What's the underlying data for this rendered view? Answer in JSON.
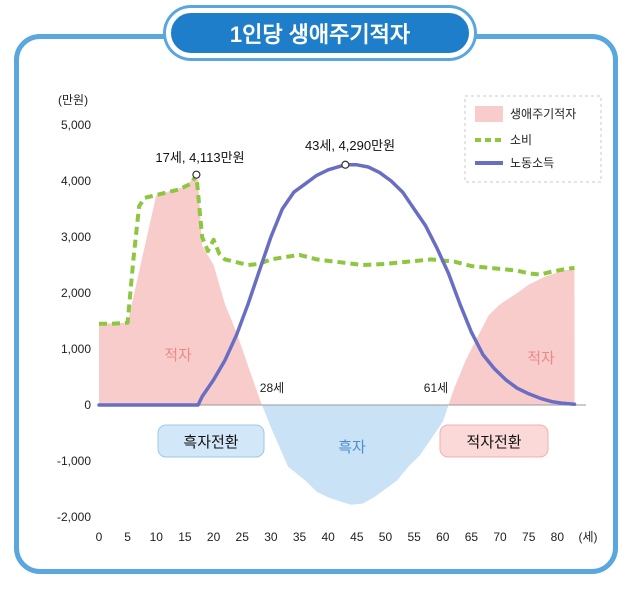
{
  "title": "1인당 생애주기적자",
  "chart_data": {
    "type": "area",
    "ylabel": "(만원)",
    "xlabel": "(세)",
    "ylim": [
      -2000,
      5000
    ],
    "xlim": [
      0,
      85
    ],
    "x_ticks": [
      0,
      5,
      10,
      15,
      20,
      25,
      30,
      35,
      40,
      45,
      50,
      55,
      60,
      65,
      70,
      75,
      80
    ],
    "y_ticks": [
      -2000,
      -1000,
      0,
      1000,
      2000,
      3000,
      4000,
      5000
    ],
    "y_tick_labels": [
      "-2,000",
      "-1,000",
      "0",
      "1,000",
      "2,000",
      "3,000",
      "4,000",
      "5,000"
    ],
    "legend_position": "top-right",
    "series": [
      {
        "name": "소비",
        "style": "dashed-line",
        "color": "#8dc63f",
        "points": [
          [
            0,
            1450
          ],
          [
            2,
            1450
          ],
          [
            4,
            1460
          ],
          [
            5,
            1470
          ],
          [
            6,
            2600
          ],
          [
            7,
            3550
          ],
          [
            8,
            3700
          ],
          [
            10,
            3750
          ],
          [
            12,
            3800
          ],
          [
            14,
            3850
          ],
          [
            15,
            3900
          ],
          [
            16,
            3950
          ],
          [
            17,
            4100
          ],
          [
            18,
            3000
          ],
          [
            19,
            2750
          ],
          [
            20,
            2950
          ],
          [
            21,
            2700
          ],
          [
            22,
            2600
          ],
          [
            24,
            2550
          ],
          [
            26,
            2500
          ],
          [
            28,
            2520
          ],
          [
            30,
            2600
          ],
          [
            33,
            2650
          ],
          [
            35,
            2680
          ],
          [
            38,
            2600
          ],
          [
            42,
            2550
          ],
          [
            46,
            2500
          ],
          [
            50,
            2520
          ],
          [
            54,
            2560
          ],
          [
            58,
            2600
          ],
          [
            62,
            2560
          ],
          [
            65,
            2480
          ],
          [
            70,
            2430
          ],
          [
            73,
            2400
          ],
          [
            75,
            2350
          ],
          [
            77,
            2330
          ],
          [
            79,
            2380
          ],
          [
            81,
            2420
          ],
          [
            83,
            2450
          ]
        ]
      },
      {
        "name": "노동소득",
        "style": "solid-line",
        "color": "#6a6ec2",
        "points": [
          [
            0,
            0
          ],
          [
            16,
            0
          ],
          [
            17.3,
            0
          ],
          [
            18,
            150
          ],
          [
            20,
            450
          ],
          [
            22,
            800
          ],
          [
            24,
            1250
          ],
          [
            26,
            1800
          ],
          [
            28,
            2400
          ],
          [
            30,
            3000
          ],
          [
            32,
            3500
          ],
          [
            34,
            3800
          ],
          [
            36,
            3950
          ],
          [
            38,
            4100
          ],
          [
            40,
            4200
          ],
          [
            42,
            4260
          ],
          [
            43,
            4290
          ],
          [
            45,
            4290
          ],
          [
            47,
            4250
          ],
          [
            49,
            4150
          ],
          [
            51,
            4000
          ],
          [
            53,
            3800
          ],
          [
            55,
            3500
          ],
          [
            57,
            3200
          ],
          [
            59,
            2800
          ],
          [
            61,
            2350
          ],
          [
            63,
            1800
          ],
          [
            65,
            1300
          ],
          [
            67,
            900
          ],
          [
            69,
            650
          ],
          [
            71,
            450
          ],
          [
            73,
            300
          ],
          [
            75,
            200
          ],
          [
            77,
            120
          ],
          [
            79,
            60
          ],
          [
            81,
            30
          ],
          [
            83,
            15
          ]
        ]
      },
      {
        "name": "생애주기적자",
        "style": "area",
        "color_positive": "#f9cccc",
        "color_negative": "#c9e2f5",
        "points": [
          [
            0,
            1450
          ],
          [
            5,
            1470
          ],
          [
            10,
            3750
          ],
          [
            15,
            3900
          ],
          [
            17,
            4100
          ],
          [
            17.3,
            4000
          ],
          [
            18,
            2850
          ],
          [
            20,
            2500
          ],
          [
            22,
            1800
          ],
          [
            24,
            1300
          ],
          [
            26,
            700
          ],
          [
            28,
            120
          ],
          [
            30,
            -400
          ],
          [
            33,
            -1100
          ],
          [
            36,
            -1350
          ],
          [
            38,
            -1550
          ],
          [
            40,
            -1650
          ],
          [
            42,
            -1720
          ],
          [
            44,
            -1780
          ],
          [
            46,
            -1760
          ],
          [
            48,
            -1650
          ],
          [
            50,
            -1500
          ],
          [
            52,
            -1350
          ],
          [
            54,
            -1100
          ],
          [
            56,
            -900
          ],
          [
            58,
            -600
          ],
          [
            60,
            -300
          ],
          [
            61,
            0
          ],
          [
            62,
            300
          ],
          [
            64,
            800
          ],
          [
            66,
            1200
          ],
          [
            68,
            1600
          ],
          [
            70,
            1800
          ],
          [
            73,
            2000
          ],
          [
            75,
            2150
          ],
          [
            78,
            2300
          ],
          [
            81,
            2400
          ],
          [
            83,
            2430
          ]
        ]
      }
    ],
    "annotations": {
      "peak_consumption": "17세, 4,113만원",
      "peak_income": "43세, 4,290만원",
      "cross_28": "28세",
      "cross_61": "61세",
      "deficit_left": "적자",
      "deficit_right": "적자",
      "surplus": "흑자",
      "to_surplus": "흑자전환",
      "to_deficit": "적자전환"
    },
    "peak_points": [
      [
        17,
        4113
      ],
      [
        43,
        4290
      ]
    ]
  }
}
